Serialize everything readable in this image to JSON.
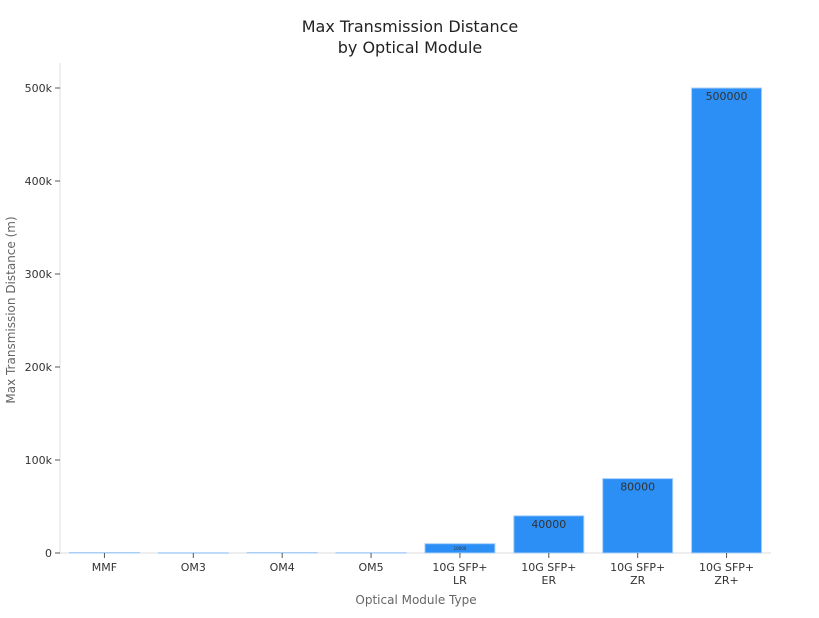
{
  "chart_data": {
    "type": "bar",
    "title": "Max Transmission Distance\nby Optical Module",
    "title_lines": [
      "Max Transmission Distance",
      "by Optical Module"
    ],
    "xlabel": "Optical Module Type",
    "ylabel": "Max Transmission Distance (m)",
    "categories": [
      "MMF",
      "OM3",
      "OM4",
      "OM5",
      "10G SFP+\nLR",
      "10G SFP+\nER",
      "10G SFP+\nZR",
      "10G SFP+\nZR+"
    ],
    "values": [
      550,
      300,
      550,
      400,
      10000,
      40000,
      80000,
      500000
    ],
    "data_labels": [
      "",
      "",
      "",
      "",
      "10000",
      "40000",
      "80000",
      "500000"
    ],
    "ylim": [
      0,
      525000
    ],
    "yticks": [
      0,
      100000,
      200000,
      300000,
      400000,
      500000
    ],
    "ytick_labels": [
      "0",
      "100k",
      "200k",
      "300k",
      "400k",
      "500k"
    ],
    "grid": false,
    "colors": {
      "bar": "#2b8ff5",
      "bar_edge": "#a9cff7",
      "label": "#333333"
    }
  }
}
